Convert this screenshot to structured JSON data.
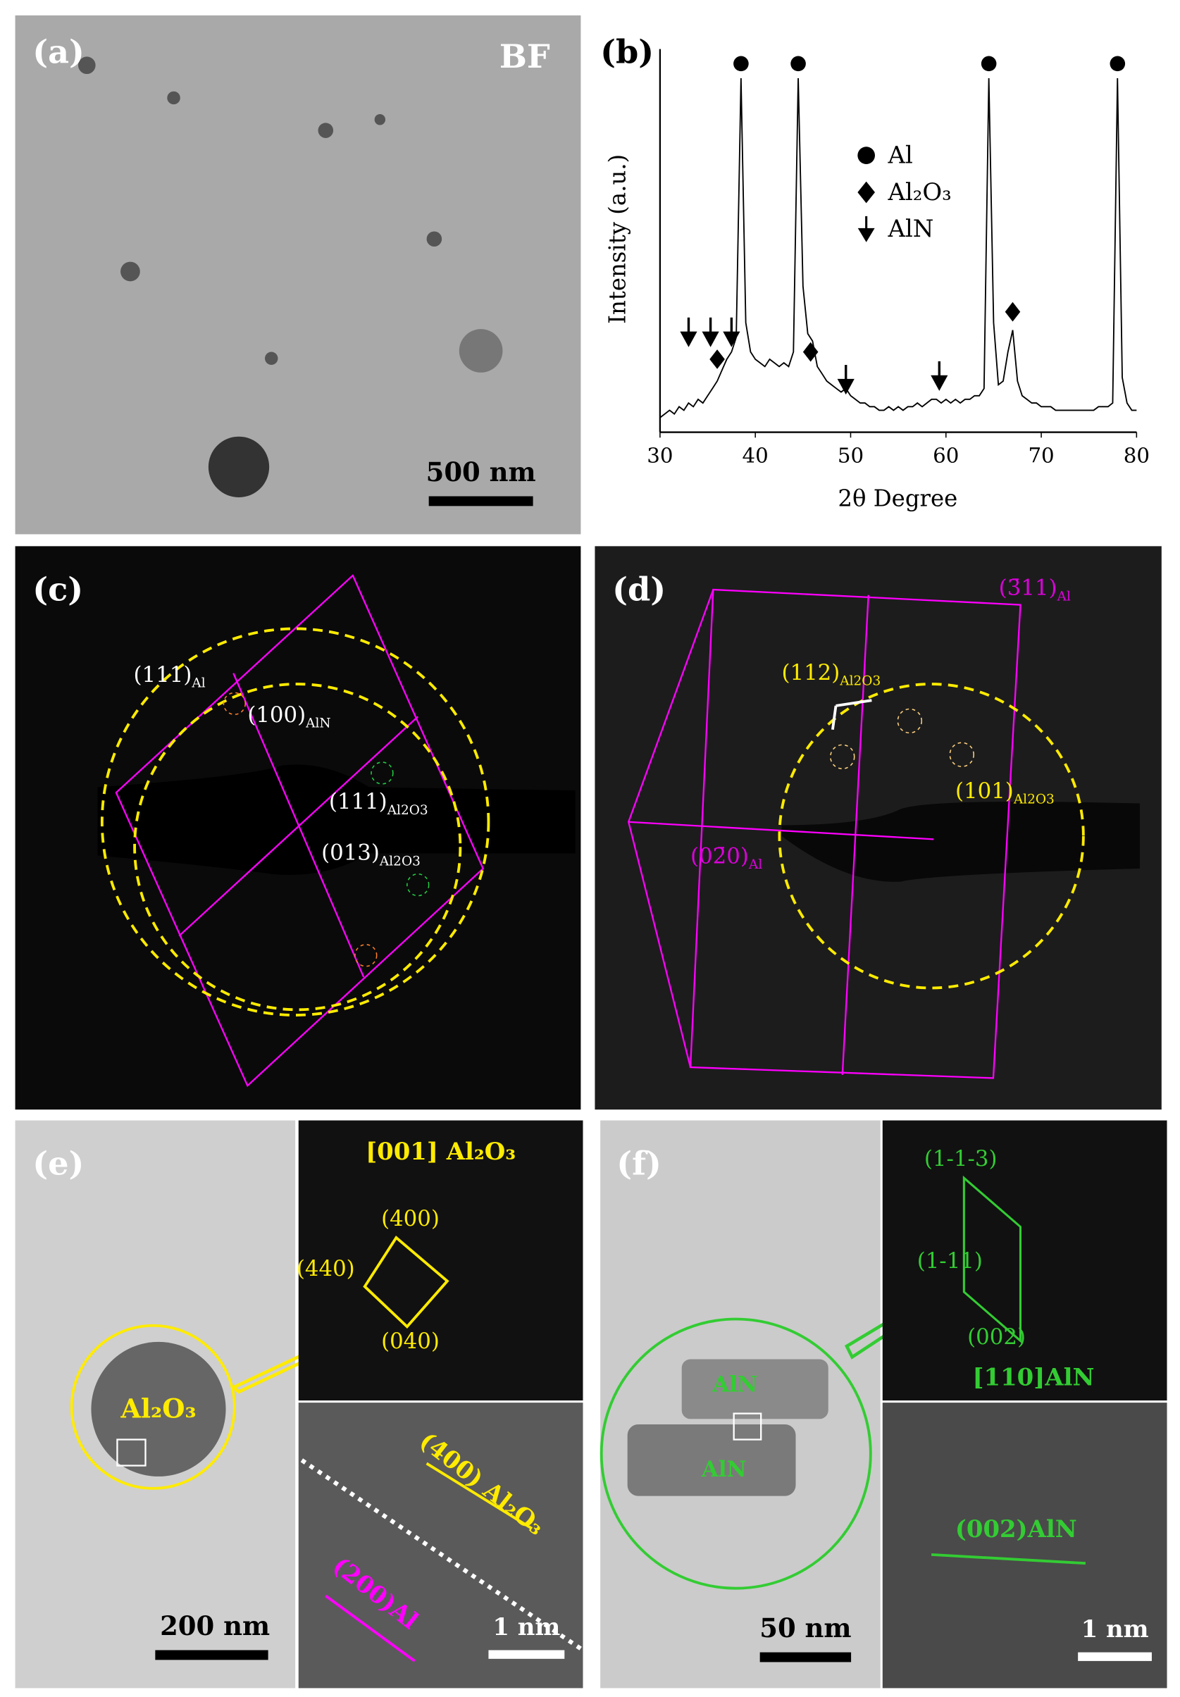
{
  "chart_data": {
    "type": "line",
    "panel_label": "(b)",
    "xlabel": "2θ Degree",
    "ylabel": "Intensity (a.u.)",
    "color": "#000000",
    "xlim": [
      30,
      80
    ],
    "xticks": [
      30,
      40,
      50,
      60,
      70,
      80
    ],
    "ylim": [
      0,
      105
    ],
    "x": [
      30,
      30.5,
      31,
      31.5,
      32,
      32.5,
      33,
      33.5,
      34,
      34.5,
      35,
      35.5,
      36,
      36.5,
      37,
      37.5,
      38,
      38.5,
      39,
      39.5,
      40,
      40.5,
      41,
      41.5,
      42,
      42.5,
      43,
      43.5,
      44,
      44.5,
      45,
      45.5,
      46,
      46.5,
      47,
      47.5,
      48,
      48.5,
      49,
      49.5,
      50,
      50.5,
      51,
      51.5,
      52,
      52.5,
      53,
      53.5,
      54,
      54.5,
      55,
      55.5,
      56,
      56.5,
      57,
      57.5,
      58,
      58.5,
      59,
      59.5,
      60,
      60.5,
      61,
      61.5,
      62,
      62.5,
      63,
      63.5,
      64,
      64.5,
      65,
      65.5,
      66,
      66.5,
      67,
      67.5,
      68,
      68.5,
      69,
      69.5,
      70,
      70.5,
      71,
      71.5,
      72,
      72.5,
      73,
      73.5,
      74,
      74.5,
      75,
      75.5,
      76,
      76.5,
      77,
      77.5,
      78,
      78.5,
      79,
      79.5,
      80
    ],
    "values": [
      4,
      5,
      6,
      5,
      7,
      6,
      8,
      7,
      9,
      8,
      10,
      12,
      14,
      17,
      20,
      22,
      26,
      97,
      30,
      22,
      20,
      19,
      18,
      20,
      19,
      18,
      19,
      18,
      22,
      97,
      40,
      27,
      25,
      18,
      16,
      14,
      13,
      12,
      11,
      12,
      10,
      9,
      8,
      8,
      7,
      7,
      6,
      6,
      7,
      6,
      7,
      6,
      7,
      7,
      8,
      7,
      8,
      9,
      9,
      8,
      9,
      8,
      9,
      8,
      9,
      9,
      10,
      10,
      12,
      97,
      30,
      13,
      14,
      22,
      28,
      14,
      10,
      9,
      8,
      8,
      7,
      7,
      7,
      6,
      6,
      6,
      6,
      6,
      6,
      6,
      6,
      6,
      7,
      7,
      7,
      8,
      97,
      15,
      8,
      6,
      6
    ],
    "peak_markers": [
      {
        "name": "Al",
        "symbol": "circle",
        "x": [
          38.5,
          44.5,
          64.5,
          78
        ],
        "y": [
          101,
          101,
          101,
          101
        ]
      },
      {
        "name": "Al₂O₃",
        "symbol": "diamond",
        "x": [
          36,
          45.8,
          67
        ],
        "y": [
          20,
          22,
          33
        ]
      },
      {
        "name": "AlN",
        "symbol": "arrow",
        "x": [
          33,
          35.3,
          37.5,
          49.5,
          59.3
        ],
        "y": [
          24,
          24,
          24,
          11,
          12
        ]
      }
    ]
  },
  "panels": {
    "a": {
      "label": "(a)",
      "mode": "BF",
      "scale_bar": "500 nm"
    },
    "c": {
      "label": "(c)",
      "spots": [
        {
          "hkl": "(111)",
          "phase": "Al"
        },
        {
          "hkl": "(100)",
          "phase": "AlN"
        },
        {
          "hkl": "(111)",
          "phase": "Al2O3"
        },
        {
          "hkl": "(013)",
          "phase": "Al2O3"
        }
      ]
    },
    "d": {
      "label": "(d)",
      "spots": [
        {
          "hkl": "(3̄11)",
          "phase": "Al"
        },
        {
          "hkl": "(112)",
          "phase": "Al2O3"
        },
        {
          "hkl": "(101)",
          "phase": "Al2O3"
        },
        {
          "hkl": "(02̄0)",
          "phase": "Al"
        }
      ]
    },
    "e": {
      "label": "(e)",
      "particle": "Al₂O₃",
      "scale_bar": "200 nm",
      "zone": "[001] Al₂O₃",
      "spots": [
        "(400)",
        "(440)",
        "(040)"
      ],
      "fringe_1": "(400) Al₂O₃",
      "fringe_2": "(200)Al",
      "hr_scale": "1 nm"
    },
    "f": {
      "label": "(f)",
      "particle_1": "AlN",
      "particle_2": "AlN",
      "scale_bar": "50 nm",
      "zone": "[110]AlN",
      "spots": [
        "(1-1-3)",
        "(1-11)",
        "(002)"
      ],
      "fringe": "(002)AlN",
      "hr_scale": "1 nm"
    }
  }
}
